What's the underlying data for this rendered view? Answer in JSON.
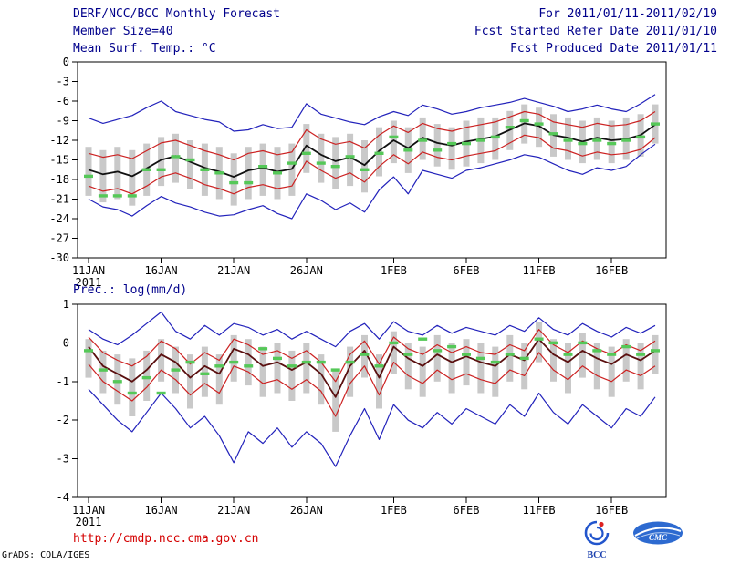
{
  "header": {
    "title": "DERF/NCC/BCC Monthly Forecast",
    "for_range": "For 2011/01/11-2011/02/19",
    "member_size": "Member Size=40",
    "refer_date": "Fcst Started Refer Date 2011/01/10",
    "produced_date": "Fcst Produced Date 2011/01/11"
  },
  "footer": {
    "url": "http://cmdp.ncc.cma.gov.cn",
    "credit": "GrADS: COLA/IGES",
    "logos": [
      {
        "label": "BCC"
      },
      {
        "label": "CMC"
      }
    ]
  },
  "colors": {
    "header_text": "#00008b",
    "url_text": "#d40000",
    "logo_blue": "#2255cc"
  },
  "chart_data": [
    {
      "type": "line",
      "title": "Mean Surf. Temp.: °C",
      "ylim": [
        -30,
        0
      ],
      "yticks": [
        "0",
        "-3",
        "-6",
        "-9",
        "-12",
        "-15",
        "-18",
        "-21",
        "-24",
        "-27",
        "-30"
      ],
      "xtick_labels": [
        "11JAN",
        "16JAN",
        "21JAN",
        "26JAN",
        "1FEB",
        "6FEB",
        "11FEB",
        "16FEB"
      ],
      "xtick_idx": [
        0,
        5,
        10,
        15,
        21,
        26,
        31,
        36
      ],
      "x_year": "2011",
      "grid": false,
      "legend": "none",
      "series": [
        {
          "name": "ensemble-max",
          "color": "#2222bb",
          "values": [
            -8.6,
            -9.4,
            -8.8,
            -8.2,
            -7.0,
            -6.0,
            -7.6,
            -8.2,
            -8.8,
            -9.2,
            -10.6,
            -10.4,
            -9.6,
            -10.2,
            -10.0,
            -6.4,
            -8.0,
            -8.6,
            -9.2,
            -9.6,
            -8.4,
            -7.6,
            -8.2,
            -6.6,
            -7.2,
            -8.0,
            -7.6,
            -7.0,
            -6.6,
            -6.2,
            -5.6,
            -6.2,
            -6.8,
            -7.6,
            -7.2,
            -6.6,
            -7.2,
            -7.6,
            -6.4,
            -5.0
          ]
        },
        {
          "name": "plus-spread",
          "color": "#cc2222",
          "values": [
            -14.0,
            -14.6,
            -14.2,
            -14.8,
            -13.6,
            -12.4,
            -12.0,
            -12.8,
            -13.6,
            -14.2,
            -15.0,
            -14.0,
            -13.6,
            -14.2,
            -13.8,
            -10.4,
            -11.8,
            -12.6,
            -12.2,
            -13.2,
            -11.2,
            -9.8,
            -10.8,
            -9.4,
            -10.2,
            -10.6,
            -10.0,
            -9.6,
            -9.2,
            -8.4,
            -7.6,
            -8.0,
            -9.2,
            -9.6,
            -10.0,
            -9.4,
            -9.8,
            -9.6,
            -9.0,
            -7.6
          ]
        },
        {
          "name": "ensemble-mean",
          "color": "#111111",
          "values": [
            -16.5,
            -17.2,
            -16.8,
            -17.5,
            -16.3,
            -15.0,
            -14.4,
            -15.3,
            -16.2,
            -16.8,
            -17.6,
            -16.6,
            -16.2,
            -16.8,
            -16.4,
            -12.8,
            -14.2,
            -15.2,
            -14.6,
            -15.8,
            -13.6,
            -12.0,
            -13.2,
            -11.6,
            -12.4,
            -12.8,
            -12.2,
            -11.8,
            -11.4,
            -10.4,
            -9.4,
            -9.8,
            -11.2,
            -11.6,
            -12.2,
            -11.6,
            -12.0,
            -11.8,
            -11.2,
            -9.6
          ]
        },
        {
          "name": "minus-spread",
          "color": "#cc2222",
          "values": [
            -19.0,
            -19.8,
            -19.4,
            -20.2,
            -19.0,
            -17.6,
            -17.0,
            -17.8,
            -18.8,
            -19.4,
            -20.2,
            -19.2,
            -18.8,
            -19.4,
            -19.0,
            -15.2,
            -16.6,
            -17.8,
            -17.0,
            -18.4,
            -16.0,
            -14.2,
            -15.6,
            -13.8,
            -14.6,
            -15.0,
            -14.4,
            -14.0,
            -13.6,
            -12.4,
            -11.2,
            -11.6,
            -13.2,
            -13.6,
            -14.4,
            -13.8,
            -14.2,
            -14.0,
            -13.4,
            -11.6
          ]
        },
        {
          "name": "ensemble-min",
          "color": "#2222bb",
          "values": [
            -21.0,
            -22.2,
            -22.6,
            -23.6,
            -22.0,
            -20.6,
            -21.6,
            -22.2,
            -23.0,
            -23.6,
            -23.4,
            -22.6,
            -22.0,
            -23.2,
            -24.0,
            -20.2,
            -21.2,
            -22.6,
            -21.6,
            -23.0,
            -19.6,
            -17.6,
            -20.2,
            -16.6,
            -17.2,
            -17.8,
            -16.6,
            -16.2,
            -15.6,
            -15.0,
            -14.2,
            -14.6,
            -15.6,
            -16.6,
            -17.2,
            -16.2,
            -16.6,
            -16.0,
            -14.2,
            -12.6
          ]
        }
      ],
      "bars": {
        "color": "#c9c9c9",
        "high": [
          -13.0,
          -13.5,
          -13.0,
          -13.5,
          -12.5,
          -11.5,
          -11.0,
          -12.0,
          -12.5,
          -13.0,
          -14.0,
          -13.0,
          -12.5,
          -13.0,
          -12.5,
          -9.5,
          -11.0,
          -11.5,
          -11.0,
          -12.0,
          -10.0,
          -9.0,
          -10.0,
          -8.5,
          -9.5,
          -10.0,
          -9.0,
          -8.5,
          -8.5,
          -7.5,
          -6.5,
          -7.0,
          -8.0,
          -8.5,
          -9.0,
          -8.5,
          -9.0,
          -8.5,
          -8.0,
          -6.5
        ],
        "low": [
          -20.5,
          -21.5,
          -21.0,
          -22.0,
          -20.5,
          -19.0,
          -18.5,
          -19.5,
          -20.5,
          -21.0,
          -22.0,
          -21.0,
          -20.5,
          -21.0,
          -20.5,
          -17.0,
          -18.5,
          -19.5,
          -19.0,
          -20.0,
          -17.5,
          -15.5,
          -17.0,
          -15.0,
          -16.0,
          -16.5,
          -16.0,
          -15.5,
          -15.0,
          -13.5,
          -12.5,
          -13.0,
          -14.5,
          -15.0,
          -15.5,
          -15.0,
          -15.5,
          -15.0,
          -14.5,
          -12.5
        ]
      },
      "dashes": {
        "name": "observation-dash",
        "color": "#55c858",
        "values": [
          -17.5,
          -20.5,
          -20.5,
          -20.5,
          -16.5,
          -16.5,
          -14.5,
          -15.0,
          -16.5,
          -17.0,
          -18.5,
          -18.5,
          -16.0,
          -17.0,
          -15.5,
          -14.0,
          -15.5,
          -16.0,
          -14.5,
          -16.5,
          -14.0,
          -11.5,
          -13.5,
          -12.0,
          -13.5,
          -12.5,
          -12.5,
          -12.0,
          -11.5,
          -10.0,
          -9.0,
          -9.5,
          -11.0,
          -12.0,
          -12.5,
          -12.0,
          -12.5,
          -12.0,
          -11.5,
          -9.5
        ]
      }
    },
    {
      "type": "line",
      "title": "Prec.: log(mm/d)",
      "ylim": [
        -4,
        1
      ],
      "yticks": [
        "1",
        "0",
        "-1",
        "-2",
        "-3",
        "-4"
      ],
      "xtick_labels": [
        "11JAN",
        "16JAN",
        "21JAN",
        "26JAN",
        "1FEB",
        "6FEB",
        "11FEB",
        "16FEB"
      ],
      "xtick_idx": [
        0,
        5,
        10,
        15,
        21,
        26,
        31,
        36
      ],
      "x_year": "2011",
      "grid": false,
      "legend": "none",
      "series": [
        {
          "name": "ensemble-max",
          "color": "#2222bb",
          "values": [
            0.35,
            0.1,
            -0.05,
            0.2,
            0.5,
            0.8,
            0.3,
            0.1,
            0.45,
            0.2,
            0.5,
            0.4,
            0.2,
            0.35,
            0.1,
            0.3,
            0.1,
            -0.1,
            0.3,
            0.5,
            0.1,
            0.55,
            0.3,
            0.2,
            0.45,
            0.25,
            0.4,
            0.3,
            0.2,
            0.45,
            0.3,
            0.65,
            0.35,
            0.2,
            0.5,
            0.3,
            0.15,
            0.4,
            0.25,
            0.45
          ]
        },
        {
          "name": "plus-spread",
          "color": "#cc2222",
          "values": [
            0.15,
            -0.25,
            -0.45,
            -0.6,
            -0.35,
            0.05,
            -0.15,
            -0.55,
            -0.25,
            -0.45,
            0.1,
            -0.05,
            -0.3,
            -0.2,
            -0.4,
            -0.2,
            -0.5,
            -1.0,
            -0.3,
            0.05,
            -0.55,
            0.15,
            -0.15,
            -0.3,
            -0.05,
            -0.25,
            -0.1,
            -0.25,
            -0.3,
            -0.05,
            -0.2,
            0.35,
            -0.05,
            -0.25,
            0.05,
            -0.15,
            -0.3,
            -0.05,
            -0.2,
            0.05
          ]
        },
        {
          "name": "ensemble-mean",
          "color": "#5a0f0f",
          "values": [
            -0.1,
            -0.6,
            -0.8,
            -1.0,
            -0.7,
            -0.3,
            -0.5,
            -0.9,
            -0.6,
            -0.8,
            -0.15,
            -0.3,
            -0.6,
            -0.5,
            -0.7,
            -0.5,
            -0.8,
            -1.4,
            -0.6,
            -0.2,
            -0.9,
            -0.1,
            -0.4,
            -0.6,
            -0.3,
            -0.5,
            -0.35,
            -0.5,
            -0.6,
            -0.3,
            -0.45,
            0.1,
            -0.3,
            -0.5,
            -0.2,
            -0.4,
            -0.55,
            -0.3,
            -0.45,
            -0.2
          ]
        },
        {
          "name": "minus-spread",
          "color": "#cc2222",
          "values": [
            -0.55,
            -1.0,
            -1.25,
            -1.5,
            -1.15,
            -0.7,
            -0.95,
            -1.35,
            -1.05,
            -1.3,
            -0.6,
            -0.75,
            -1.05,
            -0.95,
            -1.2,
            -0.95,
            -1.25,
            -1.9,
            -1.05,
            -0.6,
            -1.35,
            -0.5,
            -0.85,
            -1.05,
            -0.7,
            -0.95,
            -0.8,
            -0.95,
            -1.05,
            -0.7,
            -0.85,
            -0.25,
            -0.7,
            -0.95,
            -0.6,
            -0.85,
            -1.0,
            -0.7,
            -0.85,
            -0.6
          ]
        },
        {
          "name": "ensemble-min",
          "color": "#2222bb",
          "values": [
            -1.2,
            -1.6,
            -2.0,
            -2.3,
            -1.8,
            -1.3,
            -1.7,
            -2.2,
            -1.9,
            -2.4,
            -3.1,
            -2.3,
            -2.6,
            -2.2,
            -2.7,
            -2.3,
            -2.6,
            -3.2,
            -2.4,
            -1.7,
            -2.5,
            -1.6,
            -2.0,
            -2.2,
            -1.8,
            -2.1,
            -1.7,
            -1.9,
            -2.1,
            -1.6,
            -1.9,
            -1.3,
            -1.8,
            -2.1,
            -1.6,
            -1.9,
            -2.2,
            -1.7,
            -1.9,
            -1.4
          ]
        }
      ],
      "bars": {
        "color": "#c9c9c9",
        "high": [
          0.1,
          -0.2,
          -0.3,
          -0.4,
          -0.2,
          0.1,
          -0.1,
          -0.3,
          -0.1,
          -0.3,
          0.2,
          0.1,
          -0.1,
          0.0,
          -0.2,
          0.0,
          -0.3,
          -0.7,
          -0.1,
          0.2,
          -0.3,
          0.3,
          0.0,
          -0.1,
          0.2,
          0.0,
          0.1,
          0.0,
          -0.1,
          0.2,
          0.0,
          0.55,
          0.1,
          0.0,
          0.25,
          0.0,
          -0.1,
          0.1,
          0.0,
          0.2
        ],
        "low": [
          -0.9,
          -1.3,
          -1.6,
          -1.9,
          -1.5,
          -1.0,
          -1.3,
          -1.7,
          -1.4,
          -1.6,
          -1.0,
          -1.1,
          -1.4,
          -1.3,
          -1.5,
          -1.3,
          -1.6,
          -2.3,
          -1.4,
          -0.9,
          -1.7,
          -0.8,
          -1.2,
          -1.4,
          -1.0,
          -1.3,
          -1.1,
          -1.3,
          -1.4,
          -1.0,
          -1.2,
          -0.5,
          -1.0,
          -1.3,
          -0.9,
          -1.2,
          -1.4,
          -1.0,
          -1.2,
          -0.8
        ]
      },
      "dashes": {
        "name": "observation-dash",
        "color": "#55c858",
        "values": [
          -0.2,
          -0.7,
          -1.0,
          -1.3,
          -0.9,
          -1.3,
          -0.7,
          -0.5,
          -0.8,
          -0.6,
          -0.5,
          -0.6,
          -0.15,
          -0.4,
          -0.6,
          -0.5,
          -0.5,
          -0.7,
          -0.5,
          -0.3,
          -0.6,
          0.0,
          -0.3,
          0.1,
          -0.2,
          -0.1,
          -0.3,
          -0.4,
          -0.5,
          -0.3,
          -0.4,
          0.1,
          0.0,
          -0.3,
          0.0,
          -0.2,
          -0.3,
          -0.1,
          -0.3,
          -0.2
        ]
      }
    }
  ]
}
